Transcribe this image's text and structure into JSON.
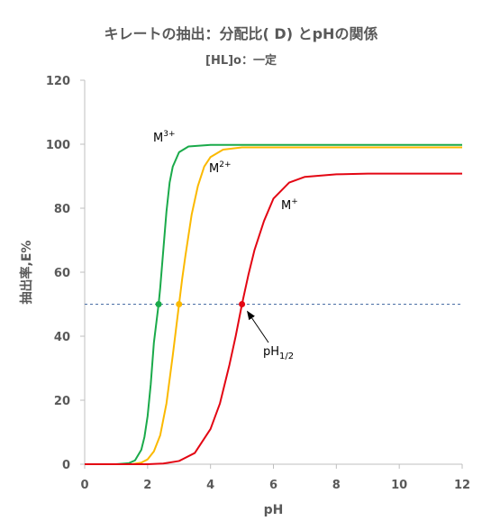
{
  "chart_data": {
    "type": "line",
    "title": "キレートの抽出：分配比( D) とpHの関係",
    "subtitle": "[HL]o：一定",
    "xlabel": "pH",
    "ylabel": "抽出率,E%",
    "xlim": [
      0,
      12
    ],
    "ylim": [
      0,
      120
    ],
    "xticks": [
      "0",
      "2",
      "4",
      "6",
      "8",
      "10",
      "12"
    ],
    "yticks": [
      "0",
      "20",
      "40",
      "60",
      "80",
      "100",
      "120"
    ],
    "grid": false,
    "series": [
      {
        "name": "M³⁺",
        "label_base": "M",
        "label_sup": "3+",
        "color": "#1aaa4a",
        "x": [
          0,
          1.0,
          1.4,
          1.6,
          1.8,
          1.9,
          2.0,
          2.1,
          2.2,
          2.3,
          2.35,
          2.4,
          2.5,
          2.6,
          2.7,
          2.8,
          3.0,
          3.3,
          4.0,
          6,
          8,
          10,
          12
        ],
        "y": [
          0,
          0,
          0.3,
          1.2,
          4.5,
          8.5,
          15,
          25,
          38,
          46,
          50,
          55,
          67,
          79,
          88,
          93,
          97.5,
          99.3,
          99.8,
          99.8,
          99.8,
          99.8,
          99.8
        ]
      },
      {
        "name": "M²⁺",
        "label_base": "M",
        "label_sup": "2+",
        "color": "#fbb900",
        "x": [
          0,
          1.5,
          1.8,
          2.0,
          2.2,
          2.4,
          2.6,
          2.8,
          2.9,
          3.0,
          3.1,
          3.2,
          3.4,
          3.6,
          3.8,
          4.0,
          4.4,
          5.0,
          6,
          8,
          10,
          12
        ],
        "y": [
          0,
          0,
          0.5,
          1.5,
          4,
          9,
          19,
          34,
          42,
          50,
          58,
          65,
          78,
          87,
          93,
          96,
          98.3,
          99,
          99,
          99,
          99,
          99
        ]
      },
      {
        "name": "M⁺",
        "label_base": "M",
        "label_sup": "+",
        "color": "#e30613",
        "x": [
          0,
          2.0,
          2.5,
          3.0,
          3.5,
          4.0,
          4.3,
          4.6,
          4.8,
          5.0,
          5.2,
          5.4,
          5.7,
          6.0,
          6.5,
          7.0,
          8.0,
          9,
          10,
          12
        ],
        "y": [
          0,
          0,
          0.2,
          1.0,
          3.5,
          11,
          19,
          31,
          40,
          50,
          59,
          67,
          76,
          83,
          88,
          89.8,
          90.6,
          90.8,
          90.8,
          90.8
        ]
      }
    ],
    "half_points": [
      {
        "series": "M³⁺",
        "x": 2.35,
        "y": 50,
        "color": "#1aaa4a"
      },
      {
        "series": "M²⁺",
        "x": 3.0,
        "y": 50,
        "color": "#fbb900"
      },
      {
        "series": "M⁺",
        "x": 5.0,
        "y": 50,
        "color": "#e30613"
      }
    ],
    "reference_line": {
      "y": 50,
      "style": "dashed",
      "color": "#4a6fa5"
    },
    "annotations": [
      {
        "text_base": "pH",
        "text_sub": "1/2",
        "target": {
          "x": 5.0,
          "y": 50
        }
      }
    ]
  }
}
